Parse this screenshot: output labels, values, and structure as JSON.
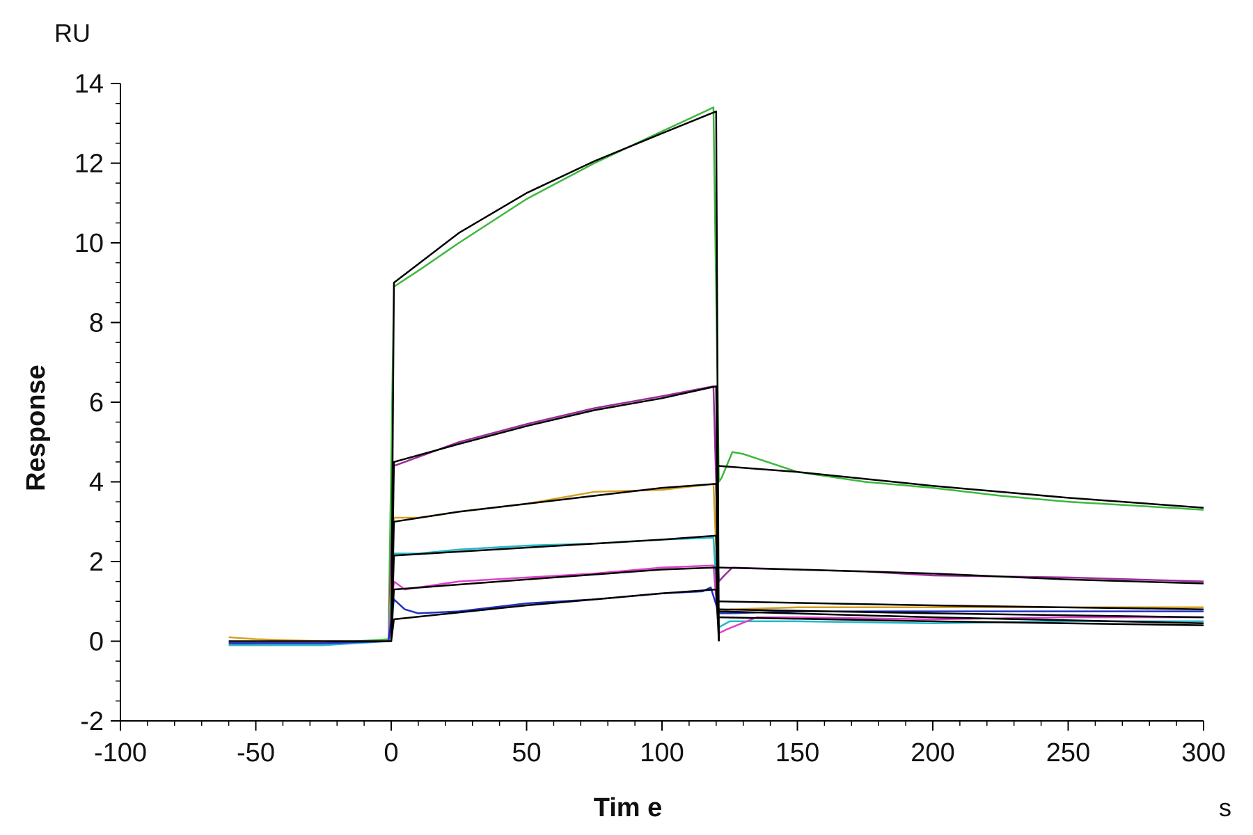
{
  "chart_data": {
    "type": "line",
    "title": "",
    "xlabel": "Tim e",
    "ylabel": "Response",
    "x_unit": "s",
    "y_unit": "RU",
    "xlim": [
      -100,
      300
    ],
    "ylim": [
      -2,
      14
    ],
    "x_ticks": [
      -100,
      -50,
      0,
      50,
      100,
      150,
      200,
      250,
      300
    ],
    "x_tick_labels": [
      "-100",
      "-50",
      "0",
      "50",
      "100",
      "150",
      "200",
      "250",
      "300"
    ],
    "y_ticks": [
      -2,
      0,
      2,
      4,
      6,
      8,
      10,
      12,
      14
    ],
    "y_tick_labels": [
      "-2",
      "0",
      "2",
      "4",
      "6",
      "8",
      "10",
      "12",
      "14"
    ],
    "grid": false,
    "legend": "none",
    "series": [
      {
        "color": "#3cb83c",
        "points": [
          [
            -60,
            -0.1
          ],
          [
            -50,
            -0.05
          ],
          [
            -25,
            -0.05
          ],
          [
            -1,
            0.05
          ],
          [
            1,
            8.9
          ],
          [
            10,
            9.3
          ],
          [
            25,
            10.0
          ],
          [
            50,
            11.1
          ],
          [
            75,
            12.0
          ],
          [
            100,
            12.8
          ],
          [
            119,
            13.4
          ],
          [
            121,
            4.0
          ],
          [
            122,
            4.1
          ],
          [
            126,
            4.75
          ],
          [
            130,
            4.7
          ],
          [
            150,
            4.25
          ],
          [
            175,
            4.0
          ],
          [
            200,
            3.85
          ],
          [
            225,
            3.65
          ],
          [
            250,
            3.5
          ],
          [
            275,
            3.4
          ],
          [
            300,
            3.3
          ]
        ]
      },
      {
        "color": "#9b2d9b",
        "points": [
          [
            -60,
            -0.05
          ],
          [
            -25,
            -0.05
          ],
          [
            -1,
            0.0
          ],
          [
            1,
            4.4
          ],
          [
            25,
            5.0
          ],
          [
            50,
            5.45
          ],
          [
            75,
            5.85
          ],
          [
            100,
            6.15
          ],
          [
            119,
            6.4
          ],
          [
            121,
            1.5
          ],
          [
            123,
            1.65
          ],
          [
            126,
            1.85
          ],
          [
            150,
            1.8
          ],
          [
            175,
            1.75
          ],
          [
            200,
            1.65
          ],
          [
            250,
            1.6
          ],
          [
            300,
            1.5
          ]
        ]
      },
      {
        "color": "#d4a020",
        "points": [
          [
            -60,
            0.1
          ],
          [
            -50,
            0.05
          ],
          [
            -25,
            0.0
          ],
          [
            -1,
            0.0
          ],
          [
            1,
            3.1
          ],
          [
            10,
            3.1
          ],
          [
            25,
            3.25
          ],
          [
            50,
            3.45
          ],
          [
            75,
            3.75
          ],
          [
            100,
            3.8
          ],
          [
            119,
            3.95
          ],
          [
            121,
            0.7
          ],
          [
            125,
            0.8
          ],
          [
            150,
            0.85
          ],
          [
            200,
            0.85
          ],
          [
            250,
            0.85
          ],
          [
            300,
            0.85
          ]
        ]
      },
      {
        "color": "#20b8c8",
        "points": [
          [
            -60,
            -0.1
          ],
          [
            -25,
            -0.1
          ],
          [
            -1,
            0.0
          ],
          [
            1,
            2.2
          ],
          [
            10,
            2.2
          ],
          [
            25,
            2.3
          ],
          [
            50,
            2.4
          ],
          [
            75,
            2.45
          ],
          [
            100,
            2.55
          ],
          [
            119,
            2.6
          ],
          [
            121,
            0.35
          ],
          [
            125,
            0.5
          ],
          [
            150,
            0.5
          ],
          [
            200,
            0.45
          ],
          [
            250,
            0.5
          ],
          [
            300,
            0.5
          ]
        ]
      },
      {
        "color": "#e040c8",
        "points": [
          [
            -60,
            -0.05
          ],
          [
            -25,
            -0.05
          ],
          [
            -1,
            0.0
          ],
          [
            1,
            1.5
          ],
          [
            5,
            1.3
          ],
          [
            10,
            1.35
          ],
          [
            25,
            1.5
          ],
          [
            50,
            1.6
          ],
          [
            75,
            1.7
          ],
          [
            100,
            1.85
          ],
          [
            119,
            1.9
          ],
          [
            121,
            0.2
          ],
          [
            124,
            0.3
          ],
          [
            135,
            0.6
          ],
          [
            150,
            0.6
          ],
          [
            200,
            0.55
          ],
          [
            250,
            0.6
          ],
          [
            300,
            0.6
          ]
        ]
      },
      {
        "color": "#2030c0",
        "points": [
          [
            -60,
            -0.05
          ],
          [
            -25,
            -0.05
          ],
          [
            -1,
            0.0
          ],
          [
            1,
            1.05
          ],
          [
            5,
            0.8
          ],
          [
            10,
            0.7
          ],
          [
            25,
            0.75
          ],
          [
            50,
            0.95
          ],
          [
            75,
            1.05
          ],
          [
            100,
            1.2
          ],
          [
            115,
            1.25
          ],
          [
            118,
            1.35
          ],
          [
            121,
            0.7
          ],
          [
            125,
            0.7
          ],
          [
            150,
            0.75
          ],
          [
            200,
            0.75
          ],
          [
            250,
            0.75
          ],
          [
            300,
            0.75
          ]
        ]
      }
    ],
    "fits": [
      {
        "color": "#000000",
        "points": [
          [
            -60,
            0.0
          ],
          [
            -1,
            0.0
          ],
          [
            0,
            0.0
          ],
          [
            1,
            9.0
          ],
          [
            25,
            10.25
          ],
          [
            50,
            11.25
          ],
          [
            75,
            12.05
          ],
          [
            100,
            12.75
          ],
          [
            120,
            13.3
          ],
          [
            121,
            0.0
          ]
        ]
      },
      {
        "color": "#000000",
        "points": [
          [
            121,
            4.4
          ],
          [
            150,
            4.25
          ],
          [
            200,
            3.9
          ],
          [
            250,
            3.6
          ],
          [
            300,
            3.35
          ]
        ]
      },
      {
        "color": "#000000",
        "points": [
          [
            0,
            0.0
          ],
          [
            1,
            4.5
          ],
          [
            25,
            4.95
          ],
          [
            50,
            5.4
          ],
          [
            75,
            5.8
          ],
          [
            100,
            6.1
          ],
          [
            120,
            6.4
          ],
          [
            121,
            0.0
          ]
        ]
      },
      {
        "color": "#000000",
        "points": [
          [
            121,
            1.85
          ],
          [
            150,
            1.8
          ],
          [
            200,
            1.7
          ],
          [
            250,
            1.55
          ],
          [
            300,
            1.45
          ]
        ]
      },
      {
        "color": "#000000",
        "points": [
          [
            0,
            0.0
          ],
          [
            1,
            3.0
          ],
          [
            25,
            3.25
          ],
          [
            50,
            3.45
          ],
          [
            75,
            3.65
          ],
          [
            100,
            3.85
          ],
          [
            120,
            3.95
          ],
          [
            121,
            0.0
          ]
        ]
      },
      {
        "color": "#000000",
        "points": [
          [
            121,
            1.0
          ],
          [
            200,
            0.9
          ],
          [
            300,
            0.8
          ]
        ]
      },
      {
        "color": "#000000",
        "points": [
          [
            0,
            0.0
          ],
          [
            1,
            2.15
          ],
          [
            50,
            2.35
          ],
          [
            100,
            2.55
          ],
          [
            120,
            2.65
          ],
          [
            121,
            0.0
          ]
        ]
      },
      {
        "color": "#000000",
        "points": [
          [
            121,
            0.8
          ],
          [
            200,
            0.7
          ],
          [
            300,
            0.6
          ]
        ]
      },
      {
        "color": "#000000",
        "points": [
          [
            0,
            0.0
          ],
          [
            1,
            1.3
          ],
          [
            50,
            1.55
          ],
          [
            100,
            1.8
          ],
          [
            120,
            1.85
          ],
          [
            121,
            0.0
          ]
        ]
      },
      {
        "color": "#000000",
        "points": [
          [
            121,
            0.75
          ],
          [
            200,
            0.6
          ],
          [
            300,
            0.45
          ]
        ]
      },
      {
        "color": "#000000",
        "points": [
          [
            0,
            0.0
          ],
          [
            1,
            0.55
          ],
          [
            50,
            0.9
          ],
          [
            100,
            1.2
          ],
          [
            120,
            1.3
          ],
          [
            121,
            0.0
          ]
        ]
      },
      {
        "color": "#000000",
        "points": [
          [
            121,
            0.6
          ],
          [
            200,
            0.5
          ],
          [
            300,
            0.4
          ]
        ]
      }
    ]
  }
}
